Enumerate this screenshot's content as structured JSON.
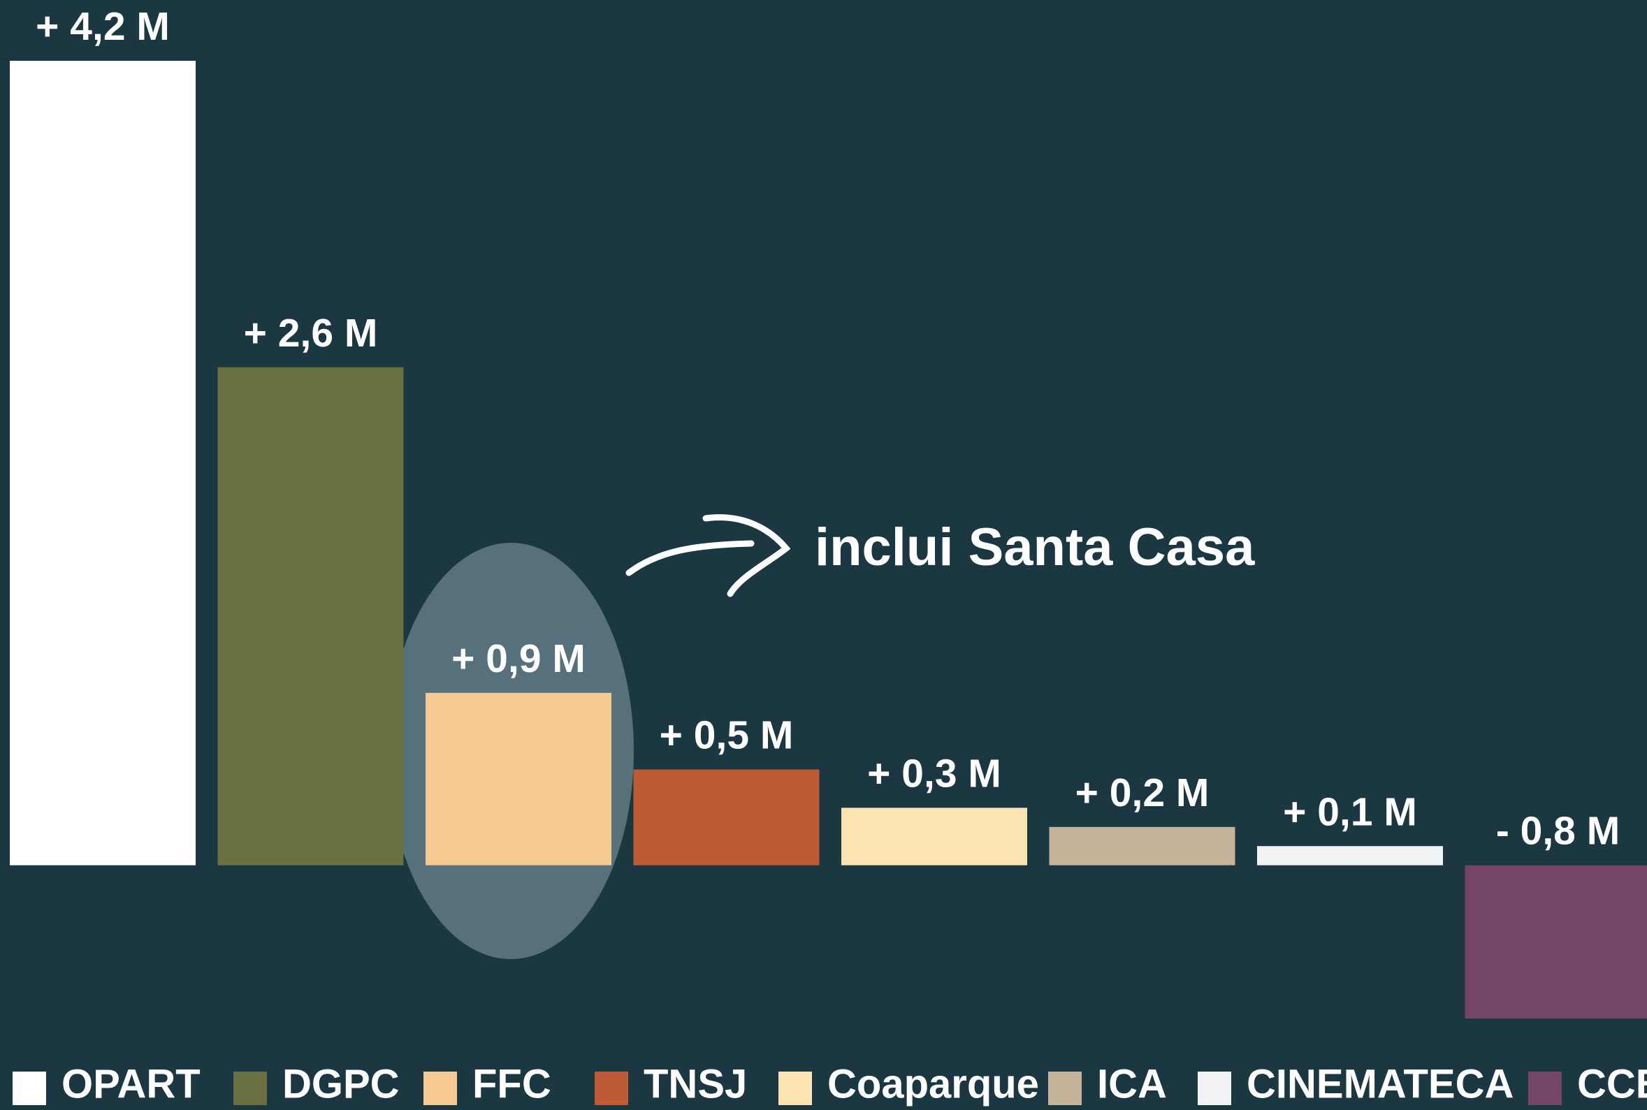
{
  "chart_data": {
    "type": "bar",
    "categories": [
      "OPART",
      "DGPC",
      "FFC",
      "TNSJ",
      "Coaparque",
      "ICA",
      "CINEMATECA",
      "CCB"
    ],
    "values": [
      4.2,
      2.6,
      0.9,
      0.5,
      0.3,
      0.2,
      0.1,
      -0.8
    ],
    "value_labels": [
      "+ 4,2 M",
      "+ 2,6 M",
      "+ 0,9 M",
      "+ 0,5 M",
      "+ 0,3 M",
      "+ 0,2 M",
      "+ 0,1 M",
      "- 0,8 M"
    ],
    "colors": [
      "#ffffff",
      "#6b7041",
      "#f5c98f",
      "#bd5c34",
      "#fbe4b1",
      "#c5b49a",
      "#f1f2f4",
      "#744566"
    ],
    "annotation": "inclui Santa Casa"
  }
}
